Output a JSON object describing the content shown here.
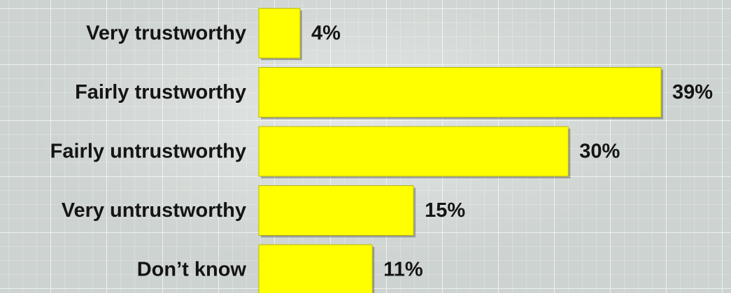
{
  "chart_data": {
    "type": "bar",
    "orientation": "horizontal",
    "categories": [
      "Very trustworthy",
      "Fairly trustworthy",
      "Fairly untrustworthy",
      "Very untrustworthy",
      "Don’t know"
    ],
    "values": [
      4,
      39,
      30,
      15,
      11
    ],
    "value_labels": [
      "4%",
      "39%",
      "30%",
      "15%",
      "11%"
    ],
    "unit": "%",
    "xlim": [
      0,
      39
    ],
    "grid": false,
    "legend": "none",
    "colors": {
      "bar": "#ffff00",
      "bar_edge": "#b8b800",
      "text": "#141414"
    }
  }
}
